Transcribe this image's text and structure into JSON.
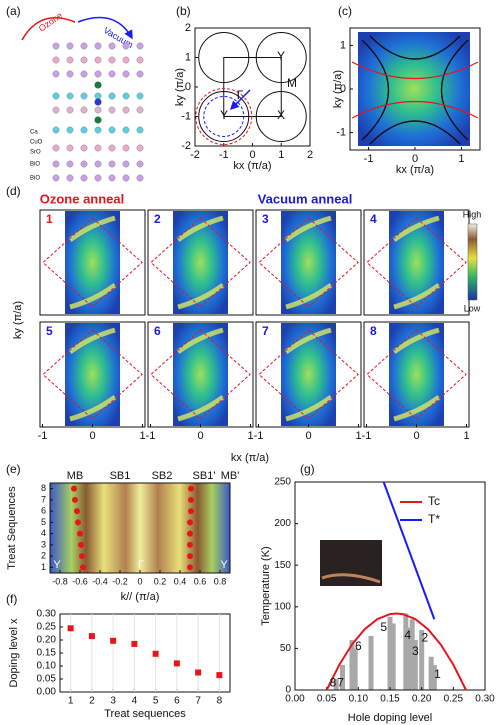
{
  "panel_labels": [
    "(a)",
    "(b)",
    "(c)",
    "(d)",
    "(e)",
    "(f)",
    "(g)"
  ],
  "illustration": {
    "ozone": "Ozone",
    "vacuum": "Vacuum",
    "layers": [
      "Ca",
      "CuO",
      "SrO",
      "BiO",
      "BiO"
    ]
  },
  "chart_data": [
    {
      "type": "schematic",
      "xlabel": "kx (π/a)",
      "ylabel": "ky (π/a)",
      "xlim": [
        -2,
        2
      ],
      "ylim": [
        -2,
        2
      ],
      "xticks": [
        -2,
        -1,
        0,
        1,
        2
      ],
      "yticks": [
        -2,
        -1,
        0,
        1,
        2
      ],
      "point_labels": [
        "Y",
        "M",
        "Γ",
        "Y",
        "X"
      ]
    },
    {
      "type": "map",
      "xlabel": "kx (π/a)",
      "ylabel": "ky (π/a)",
      "xlim": [
        -1.4,
        1.4
      ],
      "ylim": [
        -1.4,
        1.4
      ],
      "xticks": [
        -1,
        0,
        1
      ],
      "yticks": [
        -1,
        0,
        1
      ]
    },
    {
      "type": "map-grid",
      "titles": [
        "Ozone anneal",
        "Vacuum anneal"
      ],
      "title_colors": [
        "#e8141c",
        "#1a1adf"
      ],
      "panels": [
        "1",
        "2",
        "3",
        "4",
        "5",
        "6",
        "7",
        "8"
      ],
      "xlabel": "kx (π/a)",
      "ylabel": "ky (π/a)",
      "xlim": [
        -1.05,
        1.05
      ],
      "xticks": [
        -1,
        0,
        1
      ],
      "colorbar": [
        "High",
        "Low"
      ]
    },
    {
      "type": "spectrum",
      "band_labels": [
        "MB",
        "SB1",
        "SB2",
        "SB1'",
        "MB'"
      ],
      "symmetry_labels": [
        "Y",
        "Γ",
        "Y"
      ],
      "xlabel": "k// (π/a)",
      "ylabel": "Treat Sequences",
      "xlim": [
        -0.9,
        0.9
      ],
      "ylim": [
        0.5,
        8.5
      ],
      "xticks": [
        -0.8,
        -0.6,
        -0.4,
        -0.2,
        0,
        0.2,
        0.4,
        0.6,
        0.8
      ],
      "yticks": [
        1,
        2,
        3,
        4,
        5,
        6,
        7,
        8
      ],
      "series": [
        {
          "color": "#e8141c",
          "x": [
            -0.57,
            -0.58,
            -0.59,
            -0.6,
            -0.62,
            -0.63,
            -0.65,
            -0.66
          ],
          "y": [
            1,
            2,
            3,
            4,
            5,
            6,
            7,
            8
          ]
        },
        {
          "color": "#e8141c",
          "x": [
            0.5,
            0.5,
            0.5,
            0.5,
            0.5,
            0.51,
            0.51,
            0.51
          ],
          "y": [
            1,
            2,
            3,
            4,
            5,
            6,
            7,
            8
          ]
        }
      ]
    },
    {
      "type": "scatter",
      "xlabel": "Treat sequences",
      "ylabel": "Doping level x",
      "xlim": [
        0.5,
        8.5
      ],
      "ylim": [
        0,
        0.3
      ],
      "xticks": [
        1,
        2,
        3,
        4,
        5,
        6,
        7,
        8
      ],
      "yticks": [
        {
          "value": 0,
          "label": "0.00"
        },
        {
          "value": 0.05,
          "label": "0.05"
        },
        {
          "value": 0.1,
          "label": "0.10"
        },
        {
          "value": 0.15,
          "label": "0.15"
        },
        {
          "value": 0.2,
          "label": "0.20"
        },
        {
          "value": 0.25,
          "label": "0.25"
        },
        {
          "value": 0.3,
          "label": "0.30"
        }
      ],
      "grid": true,
      "color": "#e8141c",
      "x": [
        1,
        2,
        3,
        4,
        5,
        6,
        7,
        8
      ],
      "values": [
        0.245,
        0.215,
        0.197,
        0.185,
        0.147,
        0.11,
        0.075,
        0.065
      ],
      "errors": [
        0.008,
        0.008,
        0.008,
        0.008,
        0.01,
        0.01,
        0.01,
        0.01
      ]
    },
    {
      "type": "line",
      "xlabel": "Hole doping level",
      "ylabel": "Temperature (K)",
      "xlim": [
        0,
        0.3
      ],
      "ylim": [
        0,
        250
      ],
      "xticks": [
        {
          "value": 0,
          "label": "0.00"
        },
        {
          "value": 0.05,
          "label": "0.05"
        },
        {
          "value": 0.1,
          "label": "0.10"
        },
        {
          "value": 0.15,
          "label": "0.15"
        },
        {
          "value": 0.2,
          "label": "0.20"
        },
        {
          "value": 0.25,
          "label": "0.25"
        },
        {
          "value": 0.3,
          "label": "0.30"
        }
      ],
      "yticks": [
        0,
        50,
        100,
        150,
        200,
        250
      ],
      "series": [
        {
          "name": "Tc",
          "color": "#e8141c",
          "x": [
            0.05,
            0.07,
            0.09,
            0.11,
            0.13,
            0.15,
            0.16,
            0.17,
            0.19,
            0.21,
            0.23,
            0.25,
            0.27
          ],
          "values": [
            0,
            30.4,
            54.8,
            73,
            85.2,
            91.2,
            92,
            91.2,
            85.2,
            73,
            54.8,
            30.4,
            0
          ]
        },
        {
          "name": "T*",
          "color": "#1a1aff",
          "x": [
            0.14,
            0.22
          ],
          "values": [
            250,
            85
          ]
        }
      ],
      "bars": {
        "color": "#a8a8a8",
        "x": [
          0.065,
          0.075,
          0.09,
          0.095,
          0.12,
          0.15,
          0.155,
          0.175,
          0.18,
          0.185,
          0.19,
          0.2,
          0.215,
          0.22
        ],
        "values": [
          13,
          30,
          60,
          50,
          65,
          88,
          80,
          92,
          75,
          85,
          60,
          72,
          40,
          30
        ]
      },
      "bar_labels": [
        "8",
        "7",
        "6",
        "5",
        "4",
        "3",
        "2",
        "1"
      ]
    }
  ]
}
